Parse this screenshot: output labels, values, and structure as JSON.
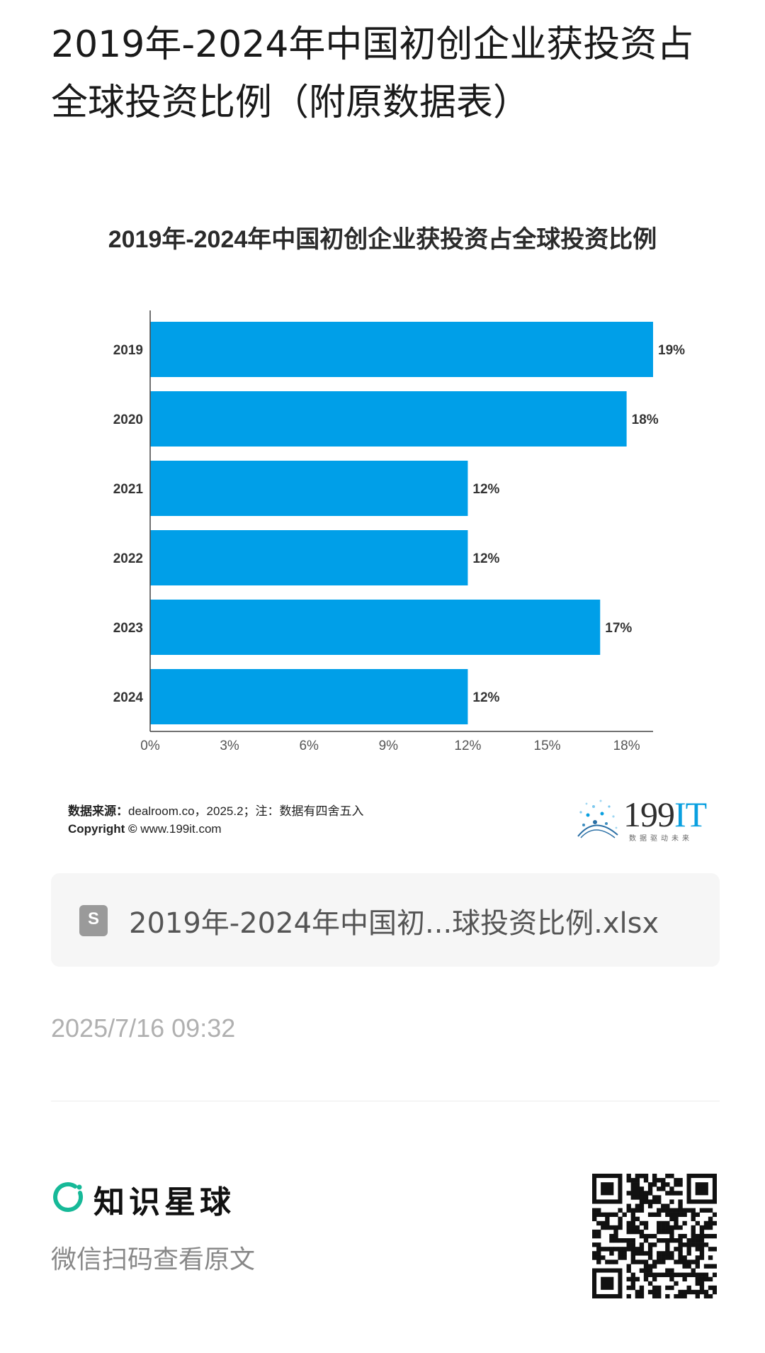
{
  "post": {
    "title": "2019年-2024年中国初创企业获投资占全球投资比例（附原数据表）",
    "timestamp": "2025/7/16 09:32"
  },
  "chart_data": {
    "type": "bar",
    "orientation": "horizontal",
    "title": "2019年-2024年中国初创企业获投资占全球投资比例",
    "categories": [
      "2019",
      "2020",
      "2021",
      "2022",
      "2023",
      "2024"
    ],
    "values": [
      19,
      18,
      12,
      12,
      17,
      12
    ],
    "value_labels": [
      "19%",
      "18%",
      "12%",
      "12%",
      "17%",
      "12%"
    ],
    "xticks": [
      "0%",
      "3%",
      "6%",
      "9%",
      "12%",
      "15%",
      "18%"
    ],
    "xlim": [
      0,
      19
    ],
    "bar_color": "#009fe8",
    "grid": false,
    "xlabel": "",
    "ylabel": ""
  },
  "chart_footer": {
    "source_label": "数据来源：",
    "source_text": "dealroom.co，2025.2；注：数据有四舍五入",
    "copyright_label": "Copyright ©",
    "copyright_text": "www.199it.com",
    "logo_number": "199",
    "logo_it": "IT",
    "logo_tagline": "数据驱动未来"
  },
  "attachment": {
    "icon": "spreadsheet-file-icon",
    "icon_letter": "S",
    "file_name": "2019年-2024年中国初...球投资比例.xlsx"
  },
  "footer": {
    "brand_icon": "zsxq-ring-icon",
    "brand_name": "知识星球",
    "scan_hint": "微信扫码查看原文",
    "qr_icon": "qr-code-icon"
  },
  "colors": {
    "accent": "#009fe8",
    "brand_green": "#16b998"
  }
}
